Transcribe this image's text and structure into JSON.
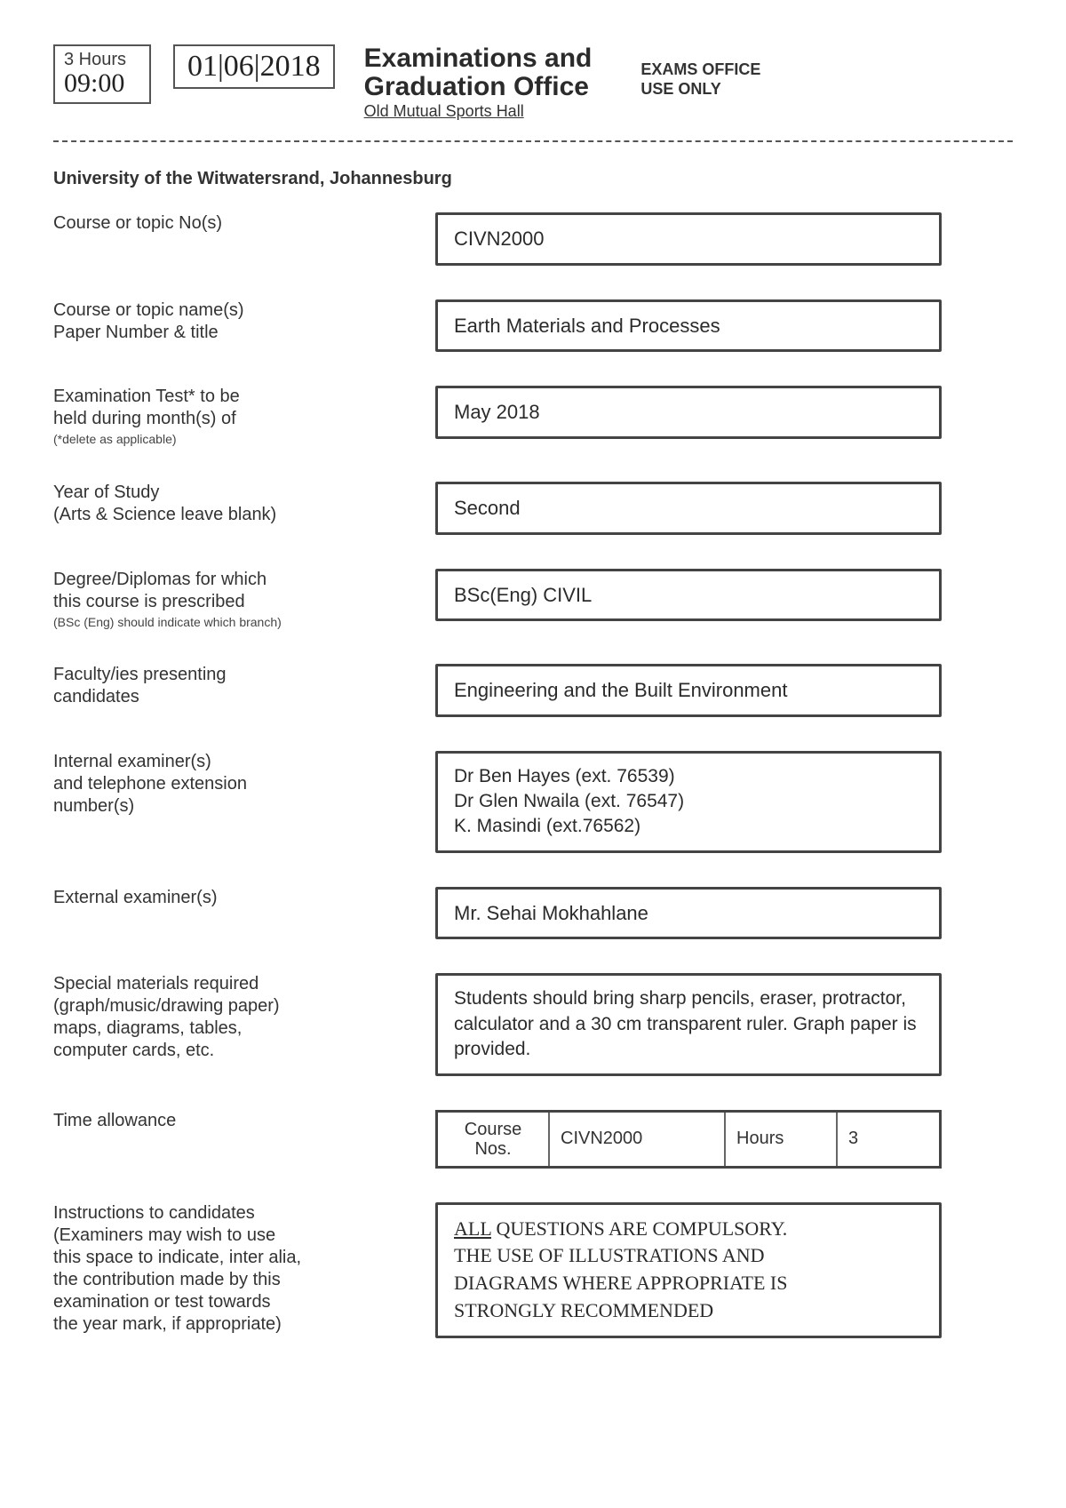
{
  "top": {
    "hours_label": "3 Hours",
    "hours_hand": "09:00",
    "date_hand": "01|06|2018",
    "title_l1": "Examinations and",
    "title_l2": "Graduation Office",
    "title_l3": "Old Mutual Sports Hall",
    "use_only_l1": "EXAMS OFFICE",
    "use_only_l2": "USE ONLY"
  },
  "university": "University of the Witwatersrand, Johannesburg",
  "rows": {
    "course_no": {
      "label": "Course or topic No(s)",
      "value": "CIVN2000"
    },
    "course_name": {
      "label_l1": "Course or topic name(s)",
      "label_l2": "Paper Number & title",
      "value": "Earth Materials and Processes"
    },
    "exam_month": {
      "label_l1": "Examination Test* to be",
      "label_l2": "held during month(s) of",
      "label_sub": "(*delete as applicable)",
      "value": "May 2018"
    },
    "year_study": {
      "label_l1": "Year of Study",
      "label_l2": "(Arts & Science leave blank)",
      "value": "Second"
    },
    "degree": {
      "label_l1": "Degree/Diplomas for which",
      "label_l2": "this course is prescribed",
      "label_sub": "(BSc (Eng) should indicate which branch)",
      "value": "BSc(Eng) CIVIL"
    },
    "faculty": {
      "label_l1": "Faculty/ies presenting",
      "label_l2": "candidates",
      "value": "Engineering and the Built Environment"
    },
    "internal": {
      "label_l1": "Internal examiner(s)",
      "label_l2": "and telephone extension",
      "label_l3": "number(s)",
      "value_l1": "Dr Ben Hayes (ext. 76539)",
      "value_l2": "Dr Glen Nwaila (ext. 76547)",
      "value_l3": "K. Masindi (ext.76562)"
    },
    "external": {
      "label": "External examiner(s)",
      "value": "Mr. Sehai Mokhahlane"
    },
    "materials": {
      "label_l1": "Special materials required",
      "label_l2": "(graph/music/drawing paper)",
      "label_l3": "maps, diagrams, tables,",
      "label_l4": "computer cards, etc.",
      "value": "Students should bring sharp pencils, eraser, protractor, calculator and a 30 cm transparent ruler. Graph paper is provided."
    },
    "time": {
      "label": "Time allowance",
      "c1a": "Course",
      "c1b": "Nos.",
      "c2": "CIVN2000",
      "c3": "Hours",
      "c4": "3"
    },
    "instructions": {
      "label_l1": "Instructions to candidates",
      "label_l2": "(Examiners may wish to use",
      "label_l3": "this space to indicate, inter alia,",
      "label_l4": "the contribution made by this",
      "label_l5": "examination or test towards",
      "label_l6": "the year mark, if appropriate)",
      "value_all": "ALL",
      "value_rest1": " QUESTIONS ARE COMPULSORY.",
      "value_l2": "THE USE OF ILLUSTRATIONS AND",
      "value_l3": "DIAGRAMS WHERE APPROPRIATE IS",
      "value_l4": "STRONGLY RECOMMENDED"
    }
  },
  "style": {
    "page_bg": "#ffffff",
    "text_color": "#333333",
    "border_color": "#444444",
    "label_fontsize": 20,
    "value_fontsize": 22
  }
}
